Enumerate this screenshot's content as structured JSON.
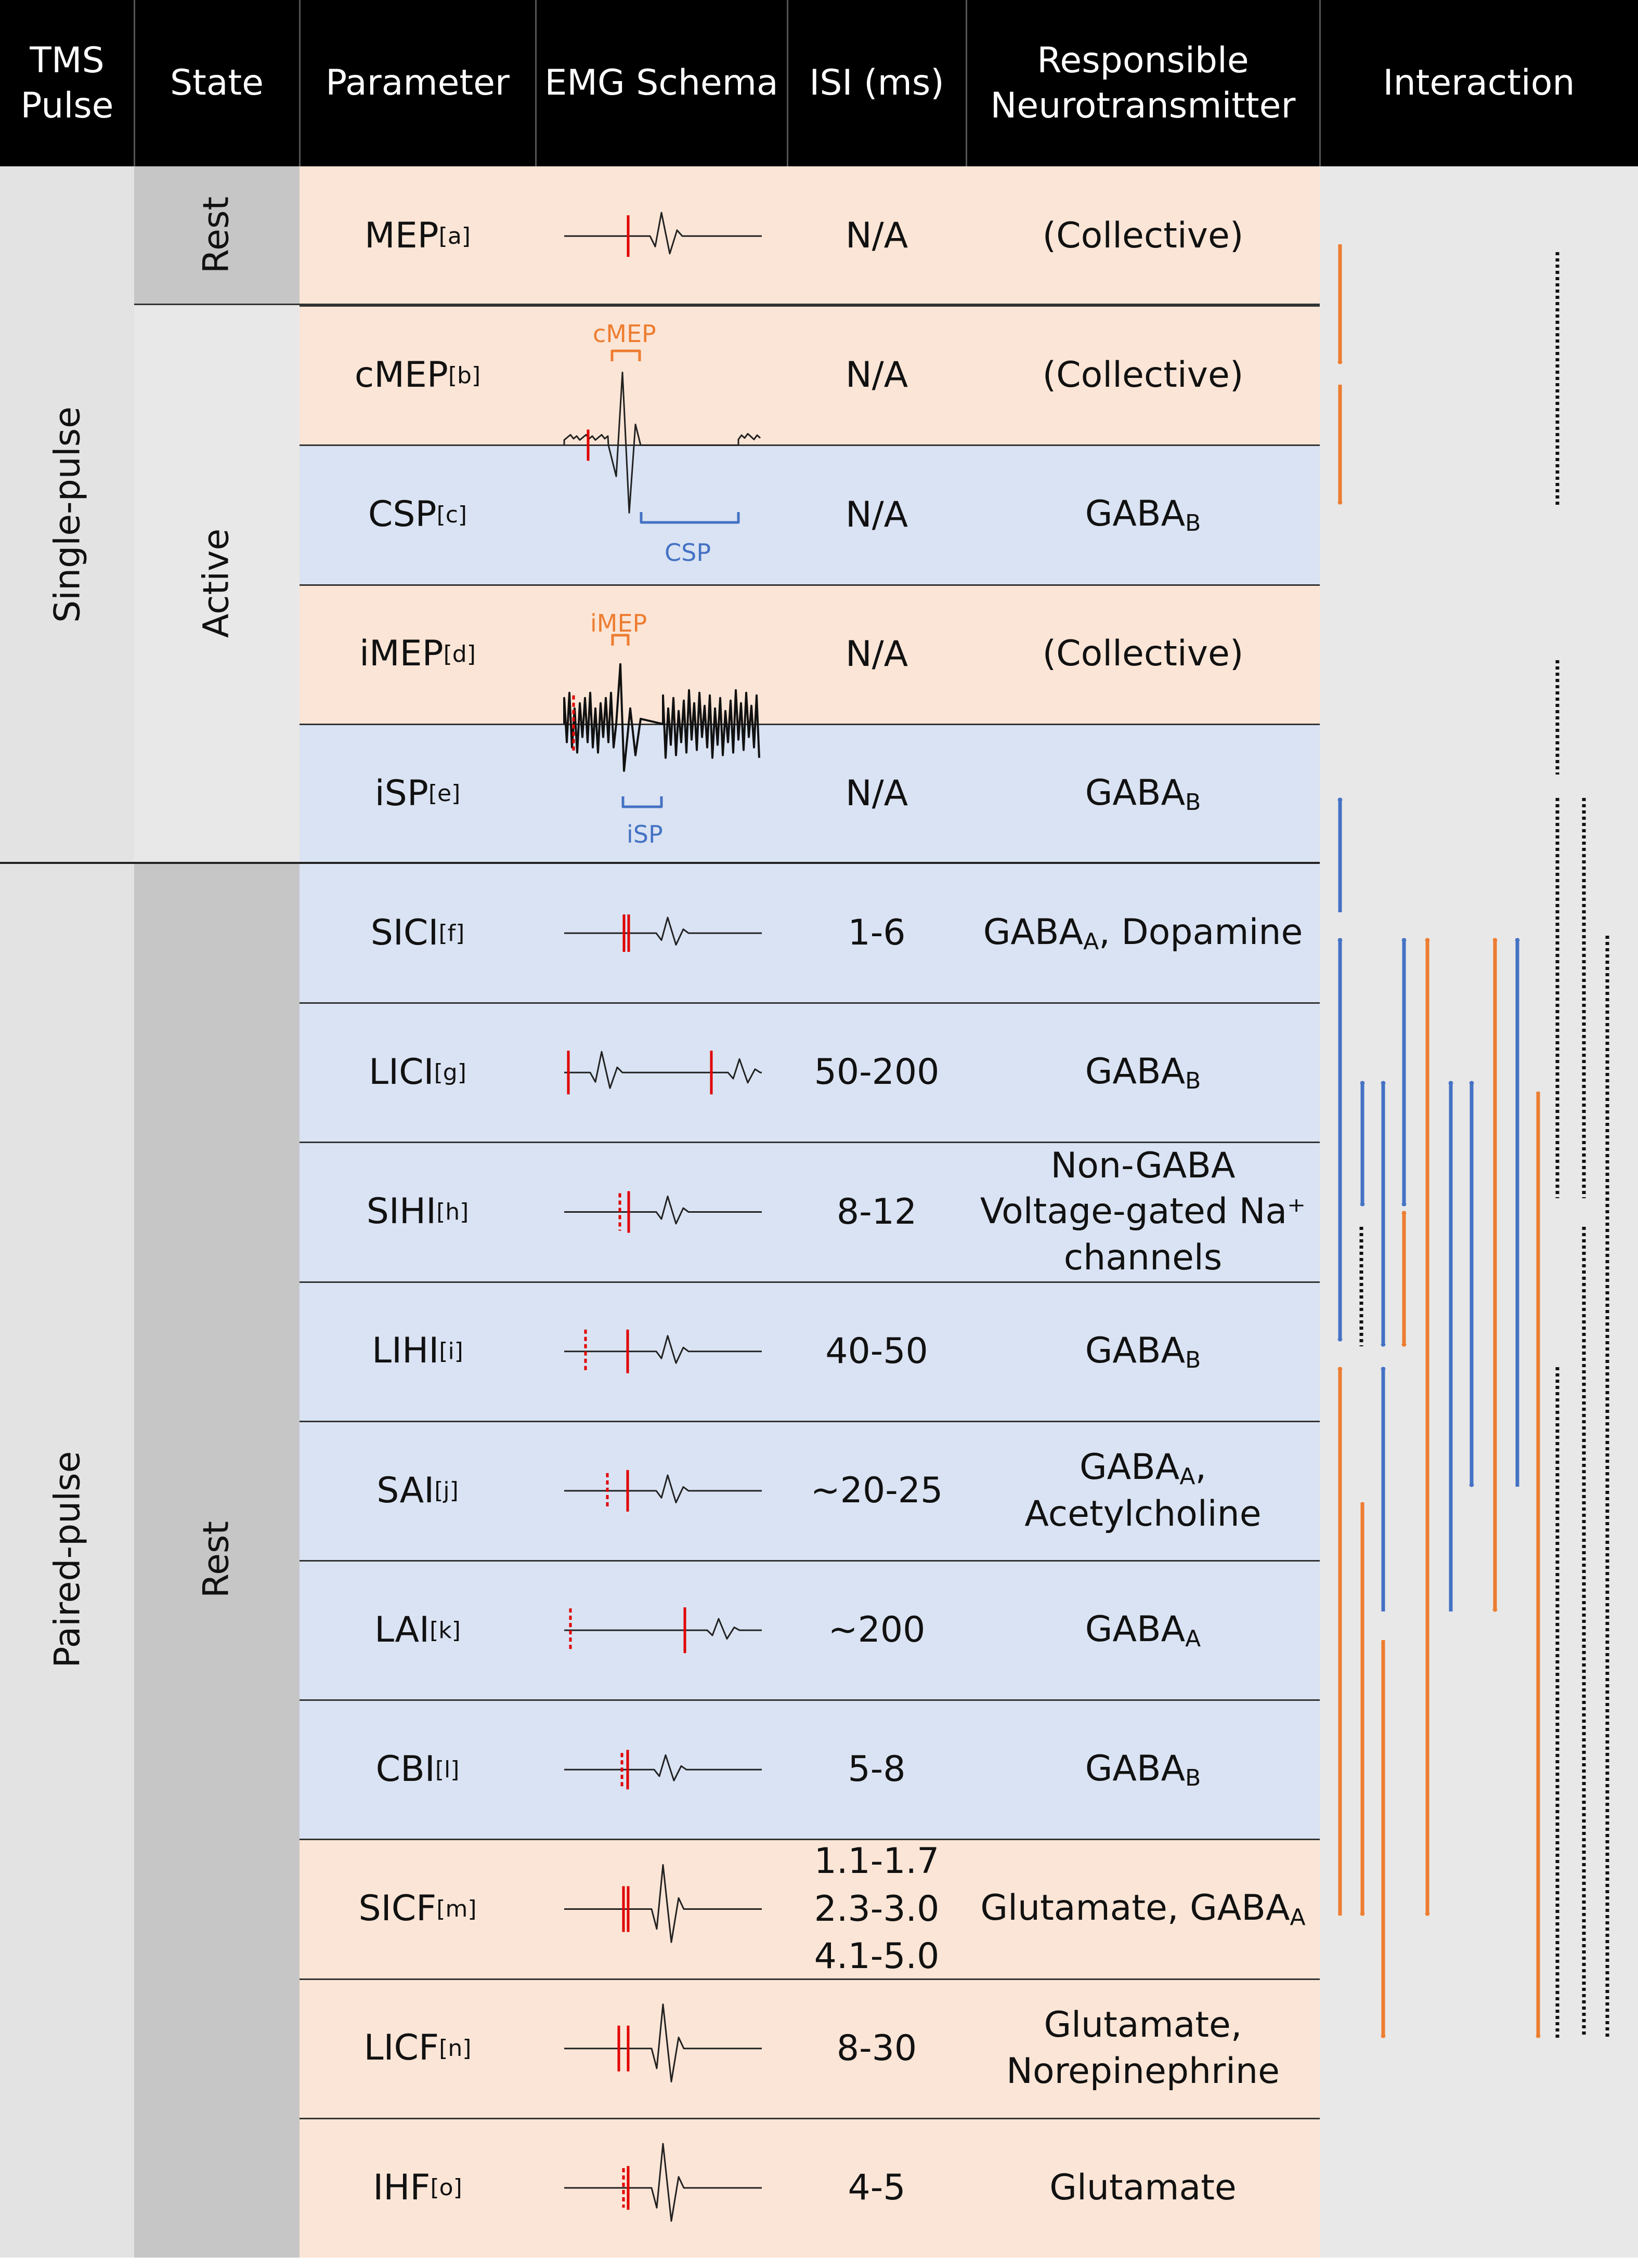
{
  "header": {
    "tms_pulse": "TMS\nPulse",
    "state": "State",
    "parameter": "Parameter",
    "emg_schema": "EMG Schema",
    "isi": "ISI (ms)",
    "neurotransmitter": "Responsible\nNeurotransmitter",
    "interaction": "Interaction"
  },
  "groups": {
    "single_pulse": "Single-pulse",
    "paired_pulse": "Paired-pulse",
    "rest_single": "Rest",
    "active": "Active",
    "rest_paired": "Rest"
  },
  "schema_labels": {
    "cmep": "cMEP",
    "csp": "CSP",
    "imep": "iMEP",
    "isp": "iSP"
  },
  "rows": [
    {
      "name": "MEP",
      "tag": "[a]",
      "isi": "N/A",
      "nt": "(Collective)",
      "type": "excitatory"
    },
    {
      "name": "cMEP",
      "tag": "[b]",
      "isi": "N/A",
      "nt": "(Collective)",
      "type": "excitatory"
    },
    {
      "name": "CSP",
      "tag": "[c]",
      "isi": "N/A",
      "nt": "GABA",
      "nt_sub": "B",
      "type": "inhibitory"
    },
    {
      "name": "iMEP",
      "tag": "[d]",
      "isi": "N/A",
      "nt": "(Collective)",
      "type": "excitatory"
    },
    {
      "name": "iSP",
      "tag": "[e]",
      "isi": "N/A",
      "nt": "GABA",
      "nt_sub": "B",
      "type": "inhibitory"
    },
    {
      "name": "SICI",
      "tag": "[f]",
      "isi": "1-6",
      "nt": "GABA",
      "nt_sub": "A",
      "nt_post": ", Dopamine",
      "type": "inhibitory"
    },
    {
      "name": "LICI",
      "tag": "[g]",
      "isi": "50-200",
      "nt": "GABA",
      "nt_sub": "B",
      "type": "inhibitory"
    },
    {
      "name": "SIHI",
      "tag": "[h]",
      "isi": "8-12",
      "nt": "Non-GABA\nVoltage-gated Na⁺\nchannels",
      "type": "inhibitory"
    },
    {
      "name": "LIHI",
      "tag": "[i]",
      "isi": "40-50",
      "nt": "GABA",
      "nt_sub": "B",
      "type": "inhibitory"
    },
    {
      "name": "SAI",
      "tag": "[j]",
      "isi": "~20-25",
      "nt": "GABA",
      "nt_sub": "A",
      "nt_post": ",\nAcetylcholine",
      "type": "inhibitory"
    },
    {
      "name": "LAI",
      "tag": "[k]",
      "isi": "~200",
      "nt": "GABA",
      "nt_sub": "A",
      "type": "inhibitory"
    },
    {
      "name": "CBI",
      "tag": "[l]",
      "isi": "5-8",
      "nt": "GABA",
      "nt_sub": "B",
      "type": "inhibitory"
    },
    {
      "name": "SICF",
      "tag": "[m]",
      "isi": "1.1-1.7\n2.3-3.0\n4.1-5.0",
      "nt": "Glutamate, GABA",
      "nt_sub": "A",
      "type": "excitatory"
    },
    {
      "name": "LICF",
      "tag": "[n]",
      "isi": "8-30",
      "nt": "Glutamate,\nNorepinephrine",
      "type": "excitatory"
    },
    {
      "name": "IHF",
      "tag": "[o]",
      "isi": "4-5",
      "nt": "Glutamate",
      "type": "excitatory"
    }
  ],
  "colors": {
    "excitatory_bg": "#FBE5D6",
    "inhibitory_bg": "#DAE3F3",
    "pulse_col_bg": "#E3E3E3",
    "rest_state_bg": "#C6C6C6",
    "active_state_bg": "#E8E8E8",
    "interaction_bg": "#E8E8E8",
    "orange_arrow": "#ED7D31",
    "blue_arrow": "#4472C4",
    "tms_marker": "#E00000"
  }
}
